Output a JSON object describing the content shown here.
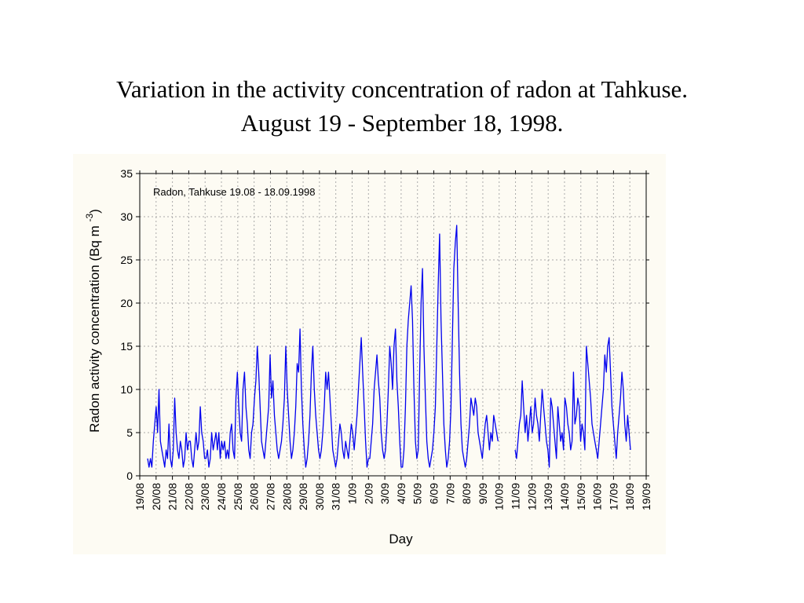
{
  "slide": {
    "title_line1": "Variation in the activity concentration of radon at Tahkuse.",
    "title_line2": "August 19 - September 18, 1998."
  },
  "colors": {
    "panel_background": "#fdfbf3",
    "series": "#0000ee",
    "grid": "#aaaaaa",
    "axis": "#000000"
  },
  "chart_data": {
    "type": "line",
    "title": "",
    "annotation": "Radon, Tahkuse 19.08 - 18.09.1998",
    "xlabel": "Day",
    "ylabel": "Radon activity concentration (Bq m ",
    "ylabel_superscript": "-3",
    "ylabel_close": ")",
    "ylim": [
      0,
      35
    ],
    "yticks": [
      0,
      5,
      10,
      15,
      20,
      25,
      30,
      35
    ],
    "xlim": [
      "1998-08-19",
      "1998-09-19"
    ],
    "xtick_labels": [
      "19/08",
      "20/08",
      "21/08",
      "22/08",
      "23/08",
      "24/08",
      "25/08",
      "26/08",
      "27/08",
      "28/08",
      "29/08",
      "30/08",
      "31/08",
      "1/09",
      "2/09",
      "3/09",
      "4/09",
      "5/09",
      "6/09",
      "7/09",
      "8/09",
      "9/09",
      "10/09",
      "11/09",
      "12/09",
      "13/09",
      "14/09",
      "15/09",
      "16/09",
      "17/09",
      "18/09",
      "19/09"
    ],
    "grid": true,
    "legend": "none",
    "series": [
      {
        "name": "Radon, Tahkuse 19.08 - 18.09.1998",
        "values": [
          2,
          1,
          2,
          1,
          4,
          6,
          8,
          5,
          10,
          4,
          3,
          2,
          1,
          3,
          2,
          6,
          2,
          1,
          3,
          9,
          5,
          3,
          2,
          4,
          3,
          1,
          2,
          5,
          3,
          4,
          4,
          2,
          1,
          3,
          5,
          3,
          4,
          8,
          5,
          4,
          2,
          2,
          3,
          1,
          2,
          5,
          3,
          4,
          5,
          3,
          5,
          2,
          4,
          3,
          4,
          2,
          3,
          2,
          5,
          6,
          3,
          2,
          9,
          12,
          8,
          5,
          4,
          10,
          12,
          8,
          6,
          3,
          2,
          5,
          6,
          9,
          11,
          15,
          12,
          8,
          4,
          3,
          2,
          4,
          6,
          8,
          14,
          9,
          11,
          7,
          5,
          3,
          2,
          3,
          4,
          6,
          9,
          15,
          10,
          7,
          4,
          2,
          3,
          5,
          8,
          13,
          12,
          17,
          10,
          6,
          3,
          1,
          2,
          4,
          7,
          12,
          15,
          10,
          7,
          5,
          3,
          2,
          3,
          5,
          8,
          12,
          10,
          12,
          9,
          6,
          3,
          2,
          1,
          2,
          4,
          6,
          5,
          3,
          2,
          4,
          3,
          2,
          4,
          6,
          5,
          3,
          5,
          7,
          10,
          13,
          16,
          12,
          8,
          4,
          1,
          2,
          2,
          4,
          6,
          10,
          12,
          14,
          11,
          9,
          5,
          3,
          2,
          3,
          6,
          10,
          15,
          13,
          10,
          15,
          17,
          11,
          8,
          4,
          1,
          1,
          3,
          8,
          15,
          18,
          20,
          22,
          18,
          10,
          4,
          2,
          3,
          12,
          20,
          24,
          15,
          9,
          4,
          2,
          1,
          2,
          3,
          5,
          8,
          15,
          22,
          28,
          18,
          12,
          6,
          3,
          1,
          2,
          4,
          8,
          16,
          24,
          27,
          29,
          20,
          12,
          6,
          3,
          2,
          1,
          2,
          4,
          6,
          9,
          8,
          7,
          9,
          8,
          5,
          4,
          3,
          2,
          4,
          6,
          7,
          5,
          3,
          5,
          4,
          7,
          6,
          5,
          4,
          null,
          null,
          null,
          null,
          null,
          null,
          null,
          null,
          null,
          null,
          null,
          3,
          2,
          4,
          6,
          7,
          11,
          8,
          5,
          7,
          4,
          6,
          8,
          5,
          6,
          9,
          7,
          6,
          4,
          7,
          10,
          8,
          6,
          4,
          3,
          1,
          9,
          8,
          6,
          4,
          2,
          8,
          6,
          4,
          5,
          3,
          9,
          8,
          6,
          5,
          3,
          4,
          12,
          6,
          7,
          9,
          8,
          4,
          6,
          5,
          3,
          15,
          13,
          11,
          9,
          6,
          5,
          4,
          3,
          2,
          4,
          6,
          8,
          10,
          14,
          12,
          15,
          16,
          12,
          8,
          6,
          4,
          2,
          5,
          7,
          9,
          12,
          10,
          6,
          4,
          7,
          5,
          3
        ]
      }
    ]
  }
}
